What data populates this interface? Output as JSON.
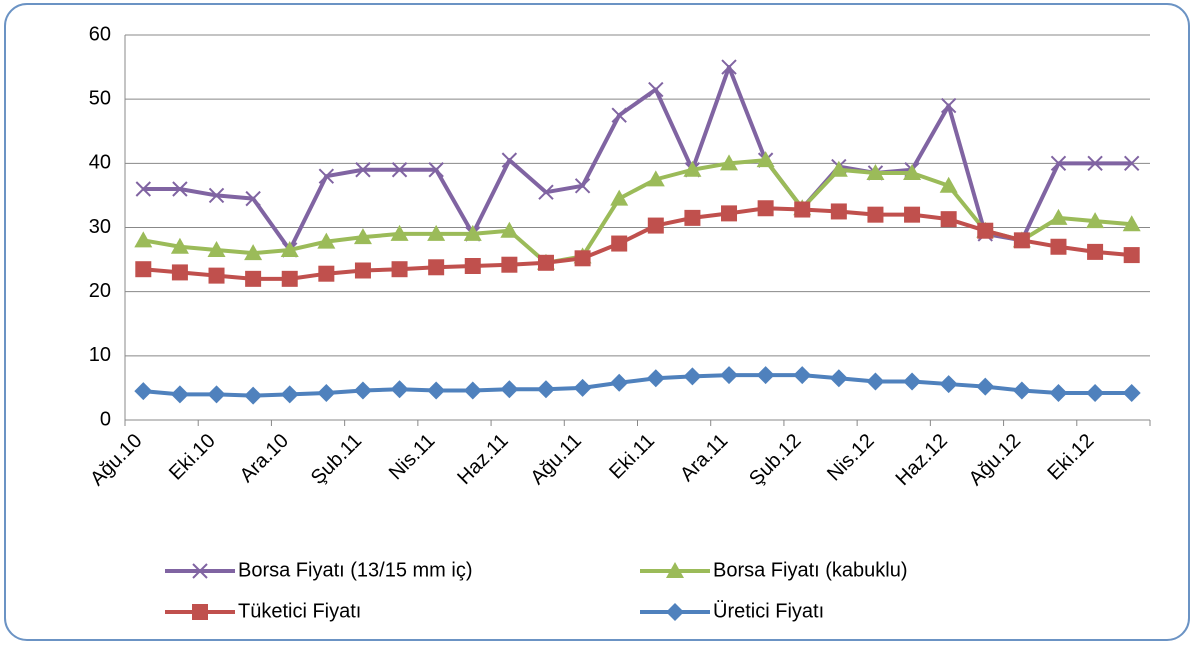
{
  "chart_data": {
    "type": "line",
    "categories": [
      "Ağu.10",
      null,
      "Eki.10",
      null,
      "Ara.10",
      null,
      "Şub.11",
      null,
      "Nis.11",
      null,
      "Haz.11",
      null,
      "Ağu.11",
      null,
      "Eki.11",
      null,
      "Ara.11",
      null,
      "Şub.12",
      null,
      "Nis.12",
      null,
      "Haz.12",
      null,
      "Ağu.12",
      null,
      "Eki.12",
      null
    ],
    "series": [
      {
        "name": "Borsa Fiyatı (13/15 mm iç)",
        "color": "#8064a2",
        "marker": "x",
        "values": [
          36,
          36,
          35,
          34.5,
          26.5,
          38,
          39,
          39,
          39,
          29,
          40.5,
          35.5,
          36.5,
          47.5,
          51.5,
          39,
          55,
          40.5,
          33,
          39.5,
          38.5,
          39,
          49,
          29,
          28,
          40,
          40,
          40
        ]
      },
      {
        "name": "Borsa Fiyatı (kabuklu)",
        "color": "#9bbb59",
        "marker": "triangle",
        "values": [
          28,
          27,
          26.5,
          26,
          26.5,
          27.8,
          28.5,
          29,
          29,
          29,
          29.5,
          24.5,
          25.5,
          34.5,
          37.5,
          39,
          40,
          40.5,
          33,
          39,
          38.5,
          38.5,
          36.5,
          29.5,
          28,
          31.5,
          31,
          30.5
        ]
      },
      {
        "name": "Tüketici Fiyatı",
        "color": "#c0504d",
        "marker": "square",
        "values": [
          23.5,
          23,
          22.5,
          22,
          22,
          22.8,
          23.3,
          23.5,
          23.8,
          24,
          24.2,
          24.5,
          25.2,
          27.5,
          30.3,
          31.5,
          32.2,
          33,
          32.8,
          32.5,
          32,
          32,
          31.3,
          29.5,
          28,
          27,
          26.2,
          25.7
        ]
      },
      {
        "name": "Üretici Fiyatı",
        "color": "#4f81bd",
        "marker": "diamond",
        "values": [
          4.5,
          4,
          4,
          3.8,
          4,
          4.2,
          4.6,
          4.8,
          4.6,
          4.6,
          4.8,
          4.8,
          5,
          5.8,
          6.5,
          6.8,
          7,
          7,
          7,
          6.5,
          6,
          6,
          5.6,
          5.2,
          4.6,
          4.2,
          4.2,
          4.2
        ]
      }
    ],
    "ylim": [
      0,
      60
    ],
    "yticks": [
      0,
      10,
      20,
      30,
      40,
      50,
      60
    ],
    "grid": true,
    "legend": "bottom"
  }
}
